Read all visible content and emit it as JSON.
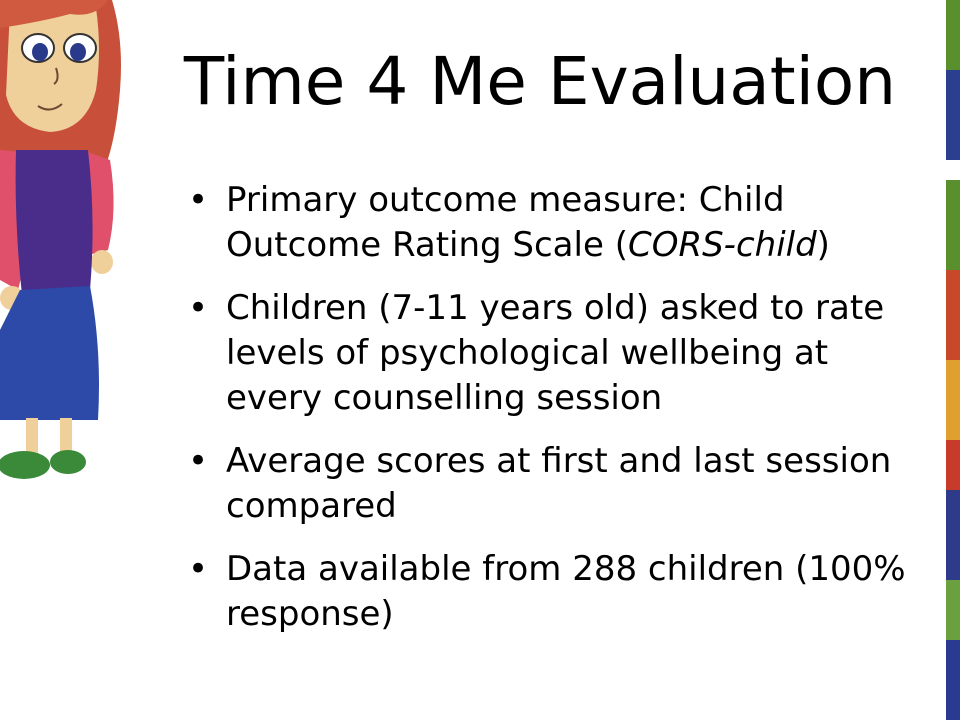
{
  "slide": {
    "title": "Time 4 Me Evaluation",
    "bullets": [
      {
        "parts": [
          "Primary outcome measure: Child Outcome Rating Scale (",
          "CORS-child",
          ")"
        ]
      },
      {
        "parts": [
          "Children (7-11 years old) asked to rate levels of psychological wellbeing at every counselling session"
        ]
      },
      {
        "parts": [
          "Average scores at first and last session compared"
        ]
      },
      {
        "parts": [
          "Data available from 288 children (100% response)"
        ]
      }
    ]
  },
  "colors": {
    "background": "#ffffff",
    "text": "#000000",
    "decorative_strip": [
      "#5a8f2e",
      "#2a3f8f",
      "#c8482a",
      "#e0a030",
      "#2e3a8a",
      "#6aa040",
      "#c83a2a",
      "#2a3a90"
    ]
  },
  "illustration": {
    "name": "child-drawing-icon"
  }
}
